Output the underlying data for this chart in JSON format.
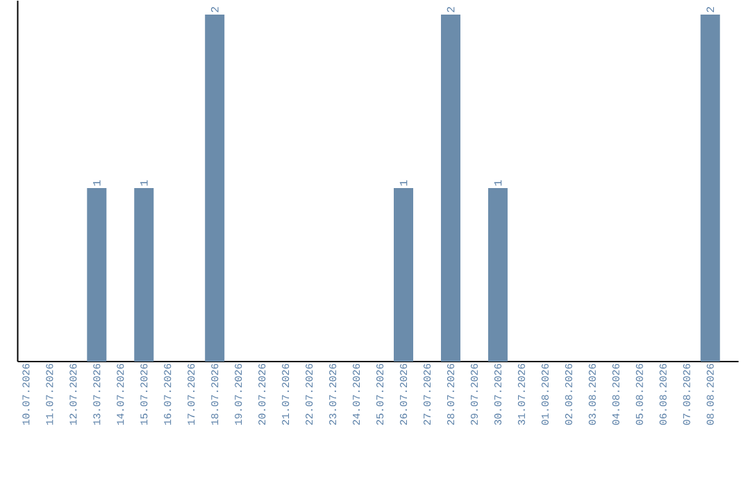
{
  "chart_data": {
    "type": "bar",
    "categories": [
      "10.07.2026",
      "11.07.2026",
      "12.07.2026",
      "13.07.2026",
      "14.07.2026",
      "15.07.2026",
      "16.07.2026",
      "17.07.2026",
      "18.07.2026",
      "19.07.2026",
      "20.07.2026",
      "21.07.2026",
      "22.07.2026",
      "23.07.2026",
      "24.07.2026",
      "25.07.2026",
      "26.07.2026",
      "27.07.2026",
      "28.07.2026",
      "29.07.2026",
      "30.07.2026",
      "31.07.2026",
      "01.08.2026",
      "02.08.2026",
      "03.08.2026",
      "04.08.2026",
      "05.08.2026",
      "06.08.2026",
      "07.08.2026",
      "08.08.2026"
    ],
    "values": [
      0,
      0,
      0,
      1,
      0,
      1,
      0,
      0,
      2,
      0,
      0,
      0,
      0,
      0,
      0,
      0,
      1,
      0,
      2,
      0,
      1,
      0,
      0,
      0,
      0,
      0,
      0,
      0,
      0,
      2
    ],
    "value_labels": [
      null,
      null,
      null,
      "1",
      null,
      "1",
      null,
      null,
      "2",
      null,
      null,
      null,
      null,
      null,
      null,
      null,
      "1",
      null,
      "2",
      null,
      "1",
      null,
      null,
      null,
      null,
      null,
      null,
      null,
      null,
      "2"
    ],
    "color": "#6b8cab",
    "ylim": [
      0,
      2.08
    ],
    "tick_labels": "x"
  }
}
